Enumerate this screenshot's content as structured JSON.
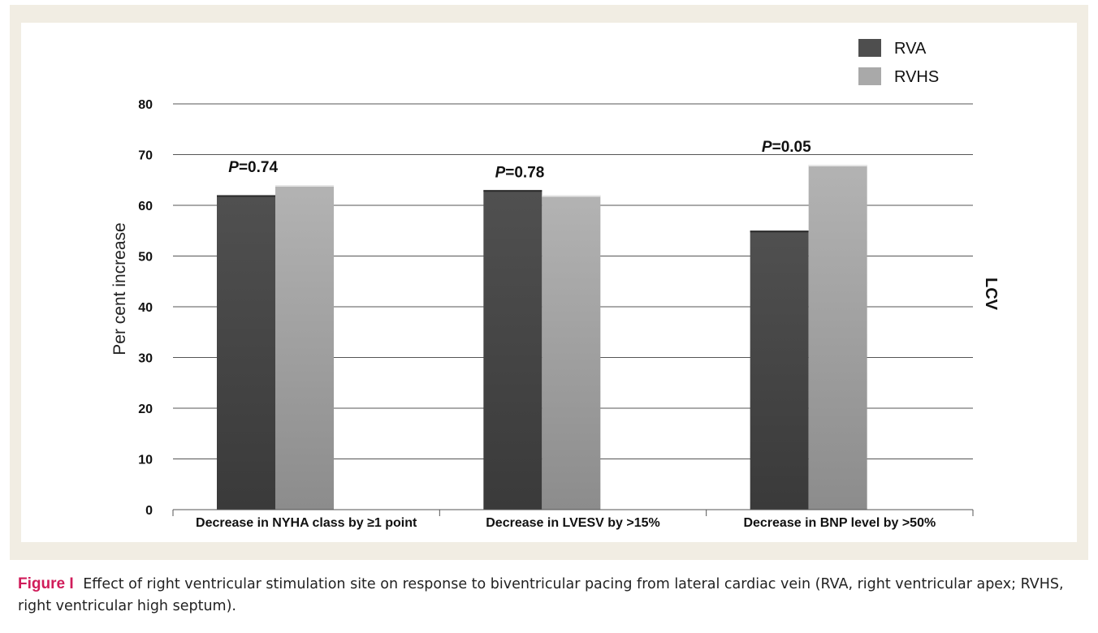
{
  "chart_data": {
    "type": "bar",
    "categories": [
      "Decrease in NYHA class by ≥1 point",
      "Decrease in LVESV by >15%",
      "Decrease in BNP level by >50%"
    ],
    "series": [
      {
        "name": "RVA",
        "values": [
          62,
          63,
          55
        ],
        "color": "#4e4e4e"
      },
      {
        "name": "RVHS",
        "values": [
          64,
          62,
          68
        ],
        "color": "#a9a9a9"
      }
    ],
    "annotations": [
      {
        "prefix": "P",
        "text": "=0.74"
      },
      {
        "prefix": "P",
        "text": "=0.78"
      },
      {
        "prefix": "P",
        "text": "=0.05"
      }
    ],
    "ylabel": "Per cent increase",
    "secondary_label": "LCV",
    "ylim": [
      0,
      80
    ],
    "yticks": [
      0,
      10,
      20,
      30,
      40,
      50,
      60,
      70,
      80
    ],
    "grid": true,
    "legend": "top-right"
  },
  "caption": {
    "label": "Figure I",
    "text": "Effect of right ventricular stimulation site on response to biventricular pacing from lateral cardiac vein (RVA, right ventricular apex; RVHS, right ventricular high septum)."
  }
}
